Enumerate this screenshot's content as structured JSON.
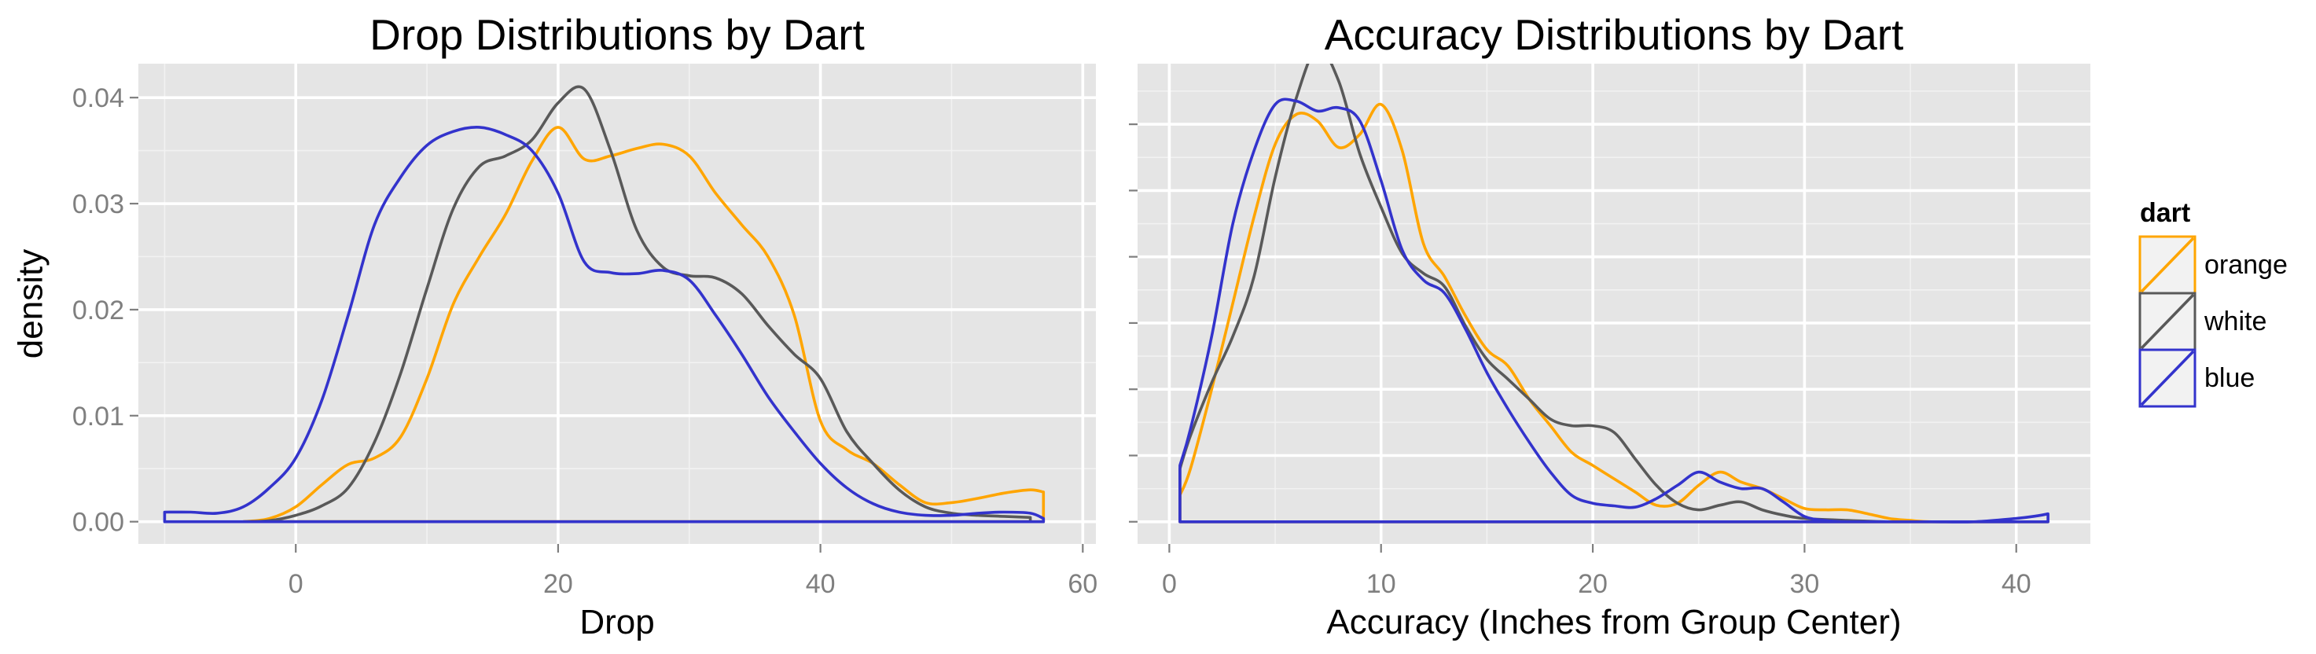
{
  "legend": {
    "title": "dart",
    "position": "right",
    "entries": [
      {
        "label": "orange",
        "color": "#FFA500"
      },
      {
        "label": "white",
        "color": "#595959"
      },
      {
        "label": "blue",
        "color": "#3333CC"
      }
    ]
  },
  "chart_data": [
    {
      "type": "area",
      "title": "Drop Distributions by Dart",
      "xlabel": "Drop",
      "ylabel": "density",
      "xlim": [
        -12,
        61
      ],
      "ylim": [
        -0.0021,
        0.0432
      ],
      "xticks": [
        0,
        20,
        40,
        60
      ],
      "yticks": [
        0,
        0.01,
        0.02,
        0.03,
        0.04
      ],
      "xtick_labels": [
        "0",
        "20",
        "40",
        "60"
      ],
      "ytick_labels": [
        "0.00",
        "0.01",
        "0.02",
        "0.03",
        "0.04"
      ],
      "grid": true,
      "series": [
        {
          "name": "orange",
          "color": "#FFA500",
          "x": [
            -4,
            -2,
            0,
            2,
            4,
            6,
            8,
            10,
            12,
            14,
            16,
            18,
            20,
            22,
            24,
            26,
            28,
            30,
            32,
            34,
            36,
            38,
            40,
            42,
            44,
            46,
            48,
            50,
            52,
            54,
            56,
            57
          ],
          "y": [
            0,
            0.0003,
            0.0014,
            0.0035,
            0.0054,
            0.006,
            0.008,
            0.0135,
            0.0205,
            0.025,
            0.029,
            0.034,
            0.0372,
            0.0342,
            0.0345,
            0.0352,
            0.0356,
            0.0345,
            0.031,
            0.028,
            0.025,
            0.0195,
            0.0095,
            0.0068,
            0.0055,
            0.0035,
            0.0018,
            0.0018,
            0.0022,
            0.0027,
            0.003,
            0.0028
          ]
        },
        {
          "name": "white",
          "color": "#595959",
          "x": [
            -4,
            -2,
            0,
            2,
            4,
            6,
            8,
            10,
            12,
            14,
            16,
            18,
            20,
            22,
            24,
            26,
            28,
            30,
            32,
            34,
            36,
            38,
            40,
            42,
            44,
            46,
            48,
            50,
            52,
            54,
            56
          ],
          "y": [
            0,
            0.0001,
            0.0006,
            0.0015,
            0.0032,
            0.0075,
            0.014,
            0.022,
            0.0295,
            0.0335,
            0.0345,
            0.036,
            0.0395,
            0.0408,
            0.035,
            0.0275,
            0.024,
            0.0232,
            0.023,
            0.0215,
            0.0185,
            0.0158,
            0.0135,
            0.0085,
            0.0055,
            0.003,
            0.0014,
            0.0008,
            0.0006,
            0.0005,
            0.0004
          ]
        },
        {
          "name": "blue",
          "color": "#3333CC",
          "x": [
            -10,
            -8,
            -6,
            -4,
            -2,
            0,
            2,
            4,
            6,
            8,
            10,
            12,
            14,
            16,
            18,
            20,
            22,
            24,
            26,
            28,
            30,
            32,
            34,
            36,
            38,
            40,
            42,
            44,
            46,
            48,
            50,
            52,
            54,
            56,
            57
          ],
          "y": [
            0.0009,
            0.0009,
            0.0008,
            0.0014,
            0.0032,
            0.006,
            0.0115,
            0.0195,
            0.028,
            0.0325,
            0.0355,
            0.0368,
            0.0372,
            0.0365,
            0.035,
            0.031,
            0.0245,
            0.0235,
            0.0234,
            0.0237,
            0.0228,
            0.0195,
            0.0158,
            0.0118,
            0.0085,
            0.0055,
            0.0032,
            0.0017,
            0.0009,
            0.0006,
            0.0006,
            0.0008,
            0.0009,
            0.0008,
            0.0003
          ]
        }
      ]
    },
    {
      "type": "area",
      "title": "Accuracy Distributions by Dart",
      "xlabel": "Accuracy (Inches from Group Center)",
      "ylabel": "",
      "xlim": [
        -1.5,
        43.5
      ],
      "ylim": [
        -0.00335,
        0.06915
      ],
      "xticks": [
        0,
        10,
        20,
        30,
        40
      ],
      "xtick_labels": [
        "0",
        "10",
        "20",
        "30",
        "40"
      ],
      "ytick_labels": [],
      "grid": true,
      "series": [
        {
          "name": "orange",
          "color": "#FFA500",
          "x": [
            0.5,
            1,
            2,
            3,
            4,
            5,
            6,
            7,
            8,
            9,
            10,
            11,
            12,
            13,
            14,
            15,
            16,
            17,
            18,
            19,
            20,
            21,
            22,
            23,
            24,
            25,
            26,
            27,
            28,
            29,
            30,
            31,
            32,
            33,
            34,
            35,
            36,
            38,
            40,
            41.5
          ],
          "y": [
            0.004,
            0.008,
            0.02,
            0.033,
            0.046,
            0.057,
            0.0615,
            0.0605,
            0.0565,
            0.0585,
            0.063,
            0.056,
            0.042,
            0.037,
            0.031,
            0.026,
            0.0235,
            0.0185,
            0.0145,
            0.0105,
            0.0085,
            0.0065,
            0.0045,
            0.0025,
            0.0028,
            0.0055,
            0.0075,
            0.006,
            0.005,
            0.0035,
            0.002,
            0.0018,
            0.0018,
            0.0012,
            0.0005,
            0.0002,
            0,
            0,
            0,
            0
          ]
        },
        {
          "name": "white",
          "color": "#595959",
          "x": [
            0.5,
            1,
            2,
            3,
            4,
            5,
            6,
            7,
            8,
            9,
            10,
            11,
            12,
            13,
            14,
            15,
            16,
            17,
            18,
            19,
            20,
            21,
            22,
            23,
            24,
            25,
            26,
            27,
            28,
            29,
            30,
            32,
            34,
            36,
            38,
            40,
            41.5
          ],
          "y": [
            0.008,
            0.013,
            0.021,
            0.028,
            0.037,
            0.052,
            0.064,
            0.0715,
            0.0665,
            0.0555,
            0.0475,
            0.0405,
            0.0375,
            0.0355,
            0.0295,
            0.0245,
            0.0215,
            0.0185,
            0.0155,
            0.0145,
            0.0145,
            0.0135,
            0.0095,
            0.0055,
            0.0028,
            0.0018,
            0.0025,
            0.003,
            0.0018,
            0.001,
            0.0005,
            0.0002,
            0,
            0,
            0,
            0,
            0
          ]
        },
        {
          "name": "blue",
          "color": "#3333CC",
          "x": [
            0.5,
            1,
            2,
            3,
            4,
            5,
            6,
            7,
            8,
            9,
            10,
            11,
            12,
            13,
            14,
            15,
            16,
            17,
            18,
            19,
            20,
            21,
            22,
            23,
            24,
            25,
            26,
            27,
            28,
            29,
            30,
            31,
            32,
            33,
            34,
            36,
            38,
            40,
            41,
            41.5
          ],
          "y": [
            0.0085,
            0.014,
            0.028,
            0.045,
            0.056,
            0.063,
            0.0635,
            0.062,
            0.0625,
            0.0605,
            0.0515,
            0.041,
            0.0365,
            0.0345,
            0.029,
            0.0225,
            0.017,
            0.012,
            0.0075,
            0.004,
            0.0028,
            0.0024,
            0.0022,
            0.0035,
            0.0055,
            0.0075,
            0.006,
            0.005,
            0.005,
            0.003,
            0.0008,
            0.0002,
            0,
            0,
            0,
            0,
            0,
            0.0005,
            0.0009,
            0.0012
          ]
        }
      ]
    }
  ]
}
